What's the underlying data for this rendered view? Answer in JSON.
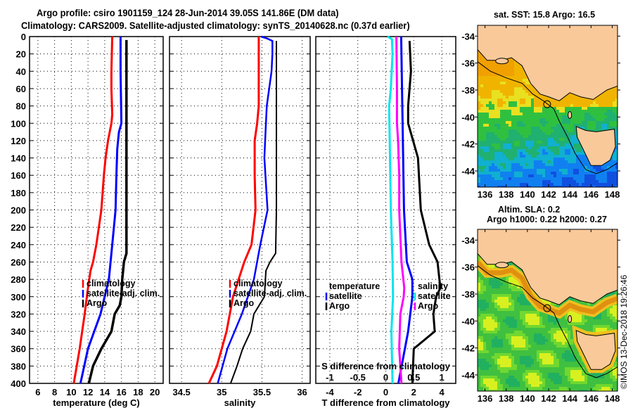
{
  "header": {
    "title_line1": "Argo profile: csiro 1901159_124 28-Jun-2014 39.05S 141.86E (DM data)",
    "title_line2": "Climatology: CARS2009. Satellite-adjusted climatology: synTS_20140628.nc (0.37d earlier)"
  },
  "colors": {
    "climatology": "#ff0000",
    "satellite": "#0000ff",
    "argo": "#000000",
    "sal_satellite": "#00e5ee",
    "sal_argo": "#ff00ff",
    "land": "#f9c99a"
  },
  "chart_data": [
    {
      "type": "line",
      "name": "temperature-profile",
      "xlabel": "temperature (deg C)",
      "ylabel": "",
      "xlim": [
        5,
        21
      ],
      "ylim": [
        400,
        0
      ],
      "xticks": [
        6,
        8,
        10,
        12,
        14,
        16,
        18,
        20
      ],
      "yticks": [
        0,
        20,
        40,
        60,
        80,
        100,
        120,
        140,
        160,
        180,
        200,
        220,
        240,
        260,
        280,
        300,
        320,
        340,
        360,
        380,
        400
      ],
      "grid": true,
      "legend": [
        "climatology",
        "satellite-adj. clim.",
        "Argo"
      ],
      "legend_position": "lower-right",
      "series": [
        {
          "name": "climatology",
          "depth": [
            0,
            40,
            60,
            90,
            100,
            120,
            140,
            160,
            200,
            240,
            260,
            270,
            290,
            320,
            360,
            400
          ],
          "values": [
            14.9,
            14.8,
            14.8,
            14.9,
            14.8,
            14.4,
            14.1,
            13.9,
            13.6,
            13.0,
            12.6,
            12.3,
            12.0,
            11.6,
            11.0,
            10.3
          ]
        },
        {
          "name": "satellite-adj. clim.",
          "depth": [
            0,
            40,
            100,
            110,
            130,
            160,
            200,
            240,
            280,
            320,
            360,
            400
          ],
          "values": [
            15.9,
            15.9,
            16.0,
            15.7,
            15.5,
            15.4,
            15.3,
            14.9,
            14.5,
            13.5,
            12.0,
            11.1
          ]
        },
        {
          "name": "Argo",
          "depth": [
            4,
            100,
            200,
            250,
            260,
            280,
            300,
            310,
            320,
            340,
            360,
            380,
            400
          ],
          "values": [
            16.6,
            16.6,
            16.6,
            16.6,
            16.3,
            16.1,
            16.0,
            15.8,
            15.2,
            14.8,
            13.6,
            12.6,
            12.1
          ]
        }
      ]
    },
    {
      "type": "line",
      "name": "salinity-profile",
      "xlabel": "salinity",
      "xlim": [
        34.35,
        36.1
      ],
      "ylim": [
        400,
        0
      ],
      "xticks": [
        34.5,
        35,
        35.5,
        36
      ],
      "grid": true,
      "legend": [
        "climatology",
        "satellite-adj. clim.",
        "Argo"
      ],
      "legend_position": "lower-right",
      "series": [
        {
          "name": "climatology",
          "depth": [
            0,
            40,
            80,
            100,
            120,
            160,
            200,
            240,
            260,
            280,
            300,
            340,
            380,
            400
          ],
          "values": [
            35.46,
            35.46,
            35.46,
            35.44,
            35.41,
            35.41,
            35.42,
            35.37,
            35.28,
            35.21,
            35.14,
            35.06,
            34.94,
            34.84
          ]
        },
        {
          "name": "satellite-adj. clim.",
          "depth": [
            0,
            2,
            5,
            20,
            40,
            60,
            80,
            100,
            140,
            200,
            240,
            280,
            320,
            360,
            400
          ],
          "values": [
            35.49,
            35.56,
            35.63,
            35.63,
            35.62,
            35.59,
            35.56,
            35.55,
            35.53,
            35.57,
            35.48,
            35.4,
            35.25,
            35.07,
            34.95
          ]
        },
        {
          "name": "Argo",
          "depth": [
            5,
            100,
            200,
            250,
            260,
            270,
            300,
            320,
            340,
            360,
            380,
            400
          ],
          "values": [
            35.68,
            35.68,
            35.68,
            35.67,
            35.6,
            35.55,
            35.53,
            35.4,
            35.36,
            35.26,
            35.19,
            35.11
          ]
        }
      ]
    },
    {
      "type": "line",
      "name": "difference-profile",
      "xlabel": "T difference from climatology",
      "xlabel_secondary": "S difference from climatology",
      "xlim": [
        -5,
        5
      ],
      "xlim_secondary": [
        -1.25,
        1.25
      ],
      "ylim": [
        400,
        0
      ],
      "xticks": [
        -4,
        -2,
        0,
        2,
        4
      ],
      "xticks_secondary": [
        -1,
        -0.5,
        0,
        0.5,
        1
      ],
      "grid": true,
      "legend": [
        "temperature",
        "satellite",
        "Argo",
        "salinity",
        "satellite",
        "Argo"
      ],
      "legend_position": "lower-center",
      "series": [
        {
          "name": "T satellite",
          "axis": "T",
          "depth": [
            0,
            100,
            200,
            260,
            280,
            300,
            340,
            400
          ],
          "values": [
            1.1,
            1.2,
            1.3,
            1.5,
            1.9,
            1.9,
            1.6,
            0.9
          ]
        },
        {
          "name": "T Argo",
          "axis": "T",
          "depth": [
            5,
            40,
            80,
            100,
            140,
            200,
            240,
            260,
            290,
            300,
            320,
            340,
            360,
            400
          ],
          "values": [
            1.7,
            1.8,
            1.6,
            1.6,
            2.3,
            2.5,
            3.1,
            3.7,
            3.9,
            3.6,
            3.4,
            3.5,
            2.0,
            1.9
          ]
        },
        {
          "name": "S satellite",
          "axis": "S",
          "depth": [
            0,
            3,
            20,
            60,
            80,
            120,
            200,
            260,
            300,
            340,
            400
          ],
          "values": [
            0.03,
            0.11,
            0.12,
            0.09,
            0.06,
            0.07,
            0.09,
            0.12,
            0.13,
            0.1,
            0.12
          ]
        },
        {
          "name": "S Argo",
          "axis": "S",
          "depth": [
            0,
            60,
            100,
            120,
            160,
            200,
            260,
            290,
            300,
            320,
            360,
            400
          ],
          "values": [
            0.19,
            0.2,
            0.2,
            0.22,
            0.24,
            0.24,
            0.28,
            0.33,
            0.32,
            0.26,
            0.24,
            0.28
          ]
        }
      ]
    },
    {
      "type": "heatmap",
      "name": "sst-map",
      "title": "sat. SST: 15.8 Argo: 16.5",
      "xticks": [
        136,
        138,
        140,
        142,
        144,
        146,
        148
      ],
      "yticks": [
        -34,
        -36,
        -38,
        -40,
        -42,
        -44
      ],
      "xlim": [
        135.3,
        148.5
      ],
      "ylim": [
        -45.2,
        -33.2
      ],
      "marker": {
        "lon": 141.86,
        "lat": -39.05
      }
    },
    {
      "type": "heatmap",
      "name": "sla-map",
      "title": "Altim. SLA: 0.2",
      "subtitle": "Argo h1000: 0.22 h2000: 0.27",
      "xticks": [
        136,
        138,
        140,
        142,
        144,
        146,
        148
      ],
      "yticks": [
        -34,
        -36,
        -38,
        -40,
        -42,
        -44
      ],
      "xlim": [
        135.3,
        148.5
      ],
      "ylim": [
        -45.2,
        -33.2
      ],
      "marker": {
        "lon": 141.86,
        "lat": -39.05
      }
    }
  ],
  "footer": {
    "copyright": "©IMOS 13-Dec-2018 19:26:46"
  }
}
